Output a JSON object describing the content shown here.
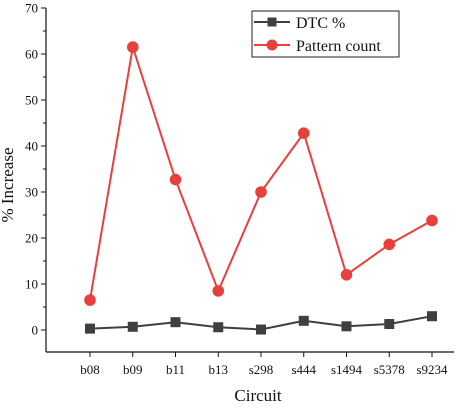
{
  "chart_data": {
    "type": "line",
    "categories": [
      "b08",
      "b09",
      "b11",
      "b13",
      "s298",
      "s444",
      "s1494",
      "s5378",
      "s9234"
    ],
    "series": [
      {
        "name": "DTC %",
        "color": "#3f3f3f",
        "marker": "square",
        "values": [
          0.3,
          0.7,
          1.7,
          0.6,
          0.1,
          2.0,
          0.8,
          1.3,
          3.0
        ]
      },
      {
        "name": "Pattern count",
        "color": "#e8403a",
        "marker": "circle",
        "values": [
          6.5,
          61.5,
          32.7,
          8.5,
          30.0,
          42.8,
          12.0,
          18.6,
          23.8
        ]
      }
    ],
    "xlabel": "Circuit",
    "ylabel": "% Increase",
    "ylim": [
      0,
      70
    ],
    "yticks": [
      0,
      10,
      20,
      30,
      40,
      50,
      60,
      70
    ],
    "legend_position": "top-right",
    "grid": false
  }
}
